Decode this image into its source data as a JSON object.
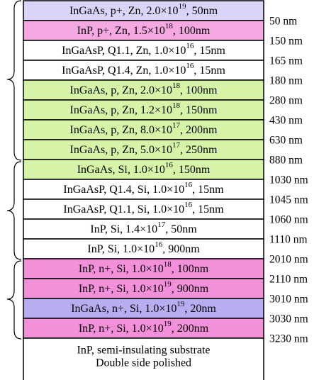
{
  "layers": [
    {
      "text": "InGaAs, p+, Zn, 2.0×10",
      "exponent": "19",
      "tail": ", 50nm",
      "color": "#dcd3f8"
    },
    {
      "text": "InP, p+, Zn, 1.5×10",
      "exponent": "18",
      "tail": ", 100nm",
      "color": "#f5a8e2"
    },
    {
      "text": "InGaAsP, Q1.1, Zn, 1.0×10",
      "exponent": "16",
      "tail": ", 15nm",
      "color": "#ffffff"
    },
    {
      "text": "InGaAsP, Q1.4, Zn, 1.0×10",
      "exponent": "16",
      "tail": ", 15nm",
      "color": "#ffffff"
    },
    {
      "text": "InGaAs, p, Zn, 2.0×10",
      "exponent": "18",
      "tail": ", 100nm",
      "color": "#d5f4a8"
    },
    {
      "text": "InGaAs, p, Zn, 1.2×10",
      "exponent": "18",
      "tail": ", 150nm",
      "color": "#d5f4a8"
    },
    {
      "text": "InGaAs, p, Zn, 8.0×10",
      "exponent": "17",
      "tail": ", 200nm",
      "color": "#d5f4a8"
    },
    {
      "text": "InGaAs, p, Zn, 5.0×10",
      "exponent": "17",
      "tail": ", 250nm",
      "color": "#d5f4a8"
    },
    {
      "text": "InGaAs, Si, 1.0×10",
      "exponent": "16",
      "tail": ", 150nm",
      "color": "#d5f4a8"
    },
    {
      "text": "InGaAsP, Q1.4, Si, 1.0×10",
      "exponent": "16",
      "tail": ", 15nm",
      "color": "#ffffff"
    },
    {
      "text": "InGaAsP, Q1.1, Si, 1.0×10",
      "exponent": "16",
      "tail": ", 15nm",
      "color": "#ffffff"
    },
    {
      "text": "InP, Si, 1.4×10",
      "exponent": "17",
      "tail": ", 50nm",
      "color": "#ffffff"
    },
    {
      "text": "InP, Si, 1.0×10",
      "exponent": "16",
      "tail": ", 900nm",
      "color": "#ffffff"
    },
    {
      "text": "InP, n+, Si, 1.0×10",
      "exponent": "18",
      "tail": ", 100nm",
      "color": "#f290da"
    },
    {
      "text": "InP, n+, Si, 1.0×10",
      "exponent": "19",
      "tail": ", 900nm",
      "color": "#f290da"
    },
    {
      "text": "InGaAs, n+, Si, 1.0×10",
      "exponent": "19",
      "tail": ", 20nm",
      "color": "#b7aef2"
    },
    {
      "text": "InP, n+, Si, 1.0×10",
      "exponent": "19",
      "tail": ", 200nm",
      "color": "#f290da"
    }
  ],
  "substrate": {
    "lines": [
      "InP, semi-insulating substrate",
      "Double side polished"
    ],
    "color": "#ffffff"
  },
  "depths": [
    "50 nm",
    "150 nm",
    "165 nm",
    "180 nm",
    "280 nm",
    "430 nm",
    "630 nm",
    "880 nm",
    "1030 nm",
    "1045 nm",
    "1060 nm",
    "1110 nm",
    "2010 nm",
    "2110 nm",
    "3010 nm",
    "3030 nm",
    "3230 nm"
  ]
}
